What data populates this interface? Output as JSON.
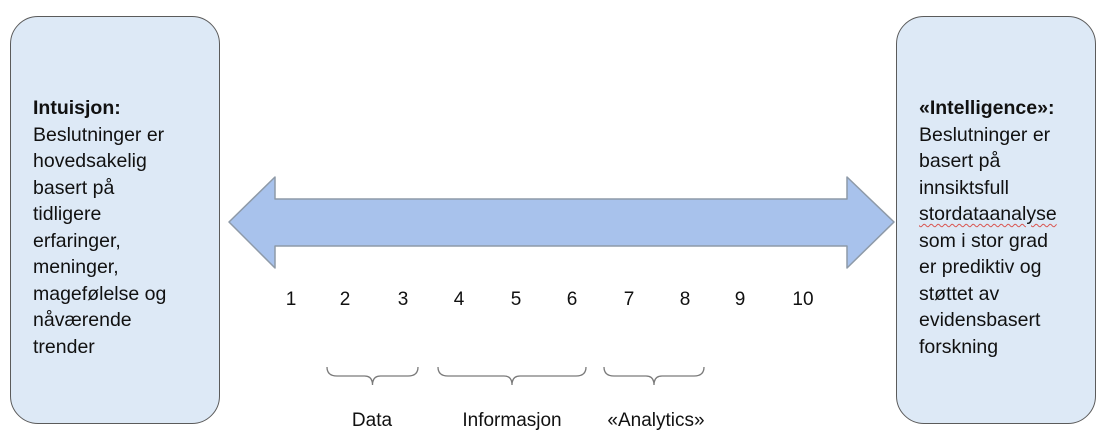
{
  "left_box": {
    "title": "Intuisjon:",
    "lines": [
      "Beslutninger er",
      "hovedsakelig",
      "basert på",
      "tidligere",
      "erfaringer,",
      "meninger,",
      "magefølelse og",
      "nåværende",
      "trender"
    ]
  },
  "right_box": {
    "title": "«Intelligence»:",
    "lines": [
      "Beslutninger er",
      "basert på",
      "innsiktsfull",
      "stordataanalyse",
      "som i stor grad",
      "er prediktiv og",
      "støttet av",
      "evidensbasert",
      "forskning"
    ]
  },
  "arrow": {
    "fill": "#a8c2ec",
    "stroke": "#8e9aa8"
  },
  "scale": [
    "1",
    "2",
    "3",
    "4",
    "5",
    "6",
    "7",
    "8",
    "9",
    "10"
  ],
  "groups": [
    {
      "label": "Data"
    },
    {
      "label": "Informasjon"
    },
    {
      "label": "«Analytics»"
    }
  ],
  "colors": {
    "box_fill": "#dde9f6",
    "box_border": "#5b5b5b",
    "brace": "#7a7a7a"
  }
}
